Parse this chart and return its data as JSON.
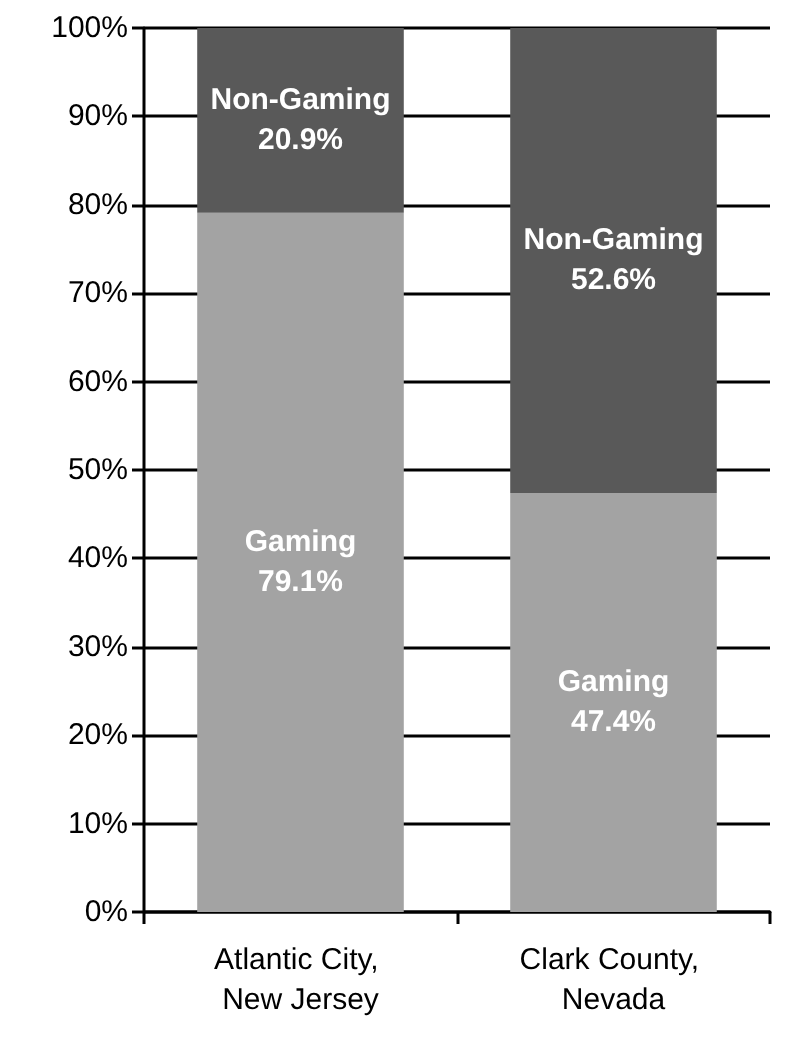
{
  "chart_data": {
    "type": "bar",
    "stacked": true,
    "categories": [
      "Atlantic City, New Jersey",
      "Clark County, Nevada"
    ],
    "series": [
      {
        "name": "Gaming",
        "color": "#a3a3a3",
        "values": [
          79.1,
          47.4
        ],
        "value_labels": [
          "79.1%",
          "47.4%"
        ]
      },
      {
        "name": "Non-Gaming",
        "color": "#595959",
        "values": [
          20.9,
          52.6
        ],
        "value_labels": [
          "20.9%",
          "52.6%"
        ]
      }
    ],
    "ylim": [
      0,
      100
    ],
    "yticks": [
      {
        "value": 0,
        "label": "0%"
      },
      {
        "value": 10,
        "label": "10%"
      },
      {
        "value": 20,
        "label": "20%"
      },
      {
        "value": 30,
        "label": "30%"
      },
      {
        "value": 40,
        "label": "40%"
      },
      {
        "value": 50,
        "label": "50%"
      },
      {
        "value": 60,
        "label": "60%"
      },
      {
        "value": 70,
        "label": "70%"
      },
      {
        "value": 80,
        "label": "80%"
      },
      {
        "value": 90,
        "label": "90%"
      },
      {
        "value": 100,
        "label": "100%"
      }
    ],
    "grid": "y",
    "legend": false
  }
}
